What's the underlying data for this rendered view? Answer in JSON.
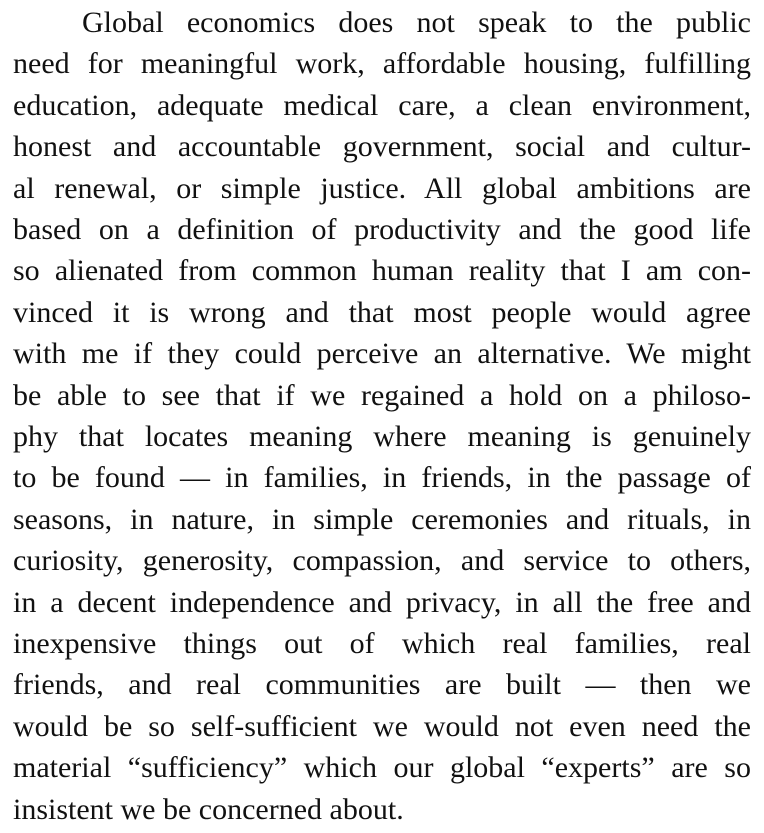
{
  "paragraph": {
    "lines": [
      "Global economics does not speak to the public",
      "need for meaningful work, affordable housing, fulfilling",
      "education, adequate medical care, a clean environment,",
      "honest and accountable government, social and cultur-",
      "al renewal, or simple justice. All global ambitions are",
      "based on a definition of productivity and the good life",
      "so alienated from common human reality that I am con-",
      "vinced it is wrong and that most people would agree",
      "with me if they could perceive an alternative. We might",
      "be able to see that if we regained a hold on a philoso-",
      "phy that locates meaning where meaning is genuinely",
      "to be found — in families, in friends, in the passage of",
      "seasons, in nature, in simple ceremonies and rituals, in",
      "curiosity, generosity, compassion, and service to others,",
      "in a decent independence and privacy, in all the free and",
      "inexpensive things out of which real families, real",
      "friends, and real communities are built — then we",
      "would be so self-sufficient we would not even need the",
      "material “sufficiency” which our global “experts” are so",
      "insistent we be concerned about."
    ]
  }
}
